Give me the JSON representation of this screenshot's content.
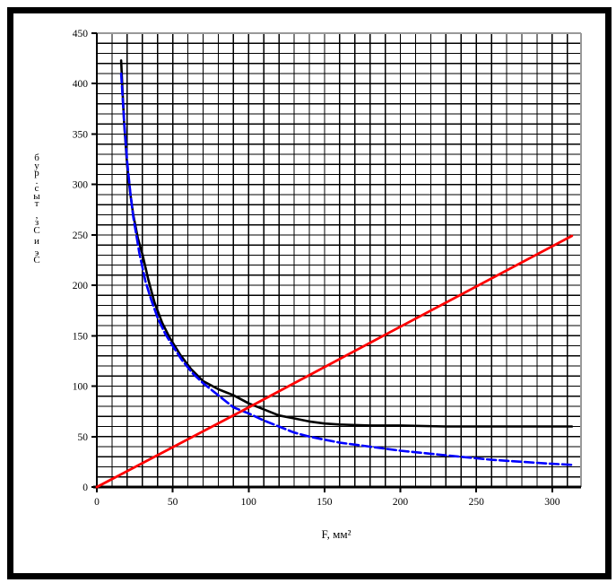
{
  "page": {
    "background": "#ffffff",
    "frame_color": "#000000"
  },
  "chart_data": {
    "type": "line",
    "title": "",
    "xlabel": "F, мм²",
    "ylabel": "Сэ и Сз, тыс.руб",
    "ylabel_stacked_bottom_to_top": true,
    "xlim": [
      0,
      319
    ],
    "ylim": [
      0,
      450
    ],
    "x_ticks": [
      0,
      50,
      100,
      150,
      200,
      250,
      300
    ],
    "y_ticks": [
      0,
      50,
      100,
      150,
      200,
      250,
      300,
      350,
      400,
      450
    ],
    "grid": {
      "x_minor_step": 10,
      "y_minor_step": 10,
      "color": "#000000",
      "plot_border_color": "#999999"
    },
    "legend": null,
    "series": [
      {
        "name": "black-total-cost-curve",
        "color": "#000000",
        "style": "solid",
        "width": 2.6,
        "points": [
          [
            16,
            423
          ],
          [
            17,
            390
          ],
          [
            18,
            360
          ],
          [
            20,
            318
          ],
          [
            22,
            292
          ],
          [
            24,
            270
          ],
          [
            27,
            247
          ],
          [
            30,
            231
          ],
          [
            34,
            205
          ],
          [
            38,
            183
          ],
          [
            43,
            163
          ],
          [
            48,
            148
          ],
          [
            55,
            131
          ],
          [
            62,
            117
          ],
          [
            70,
            105
          ],
          [
            80,
            97
          ],
          [
            90,
            91
          ],
          [
            100,
            83
          ],
          [
            110,
            77
          ],
          [
            120,
            71
          ],
          [
            130,
            68
          ],
          [
            140,
            65
          ],
          [
            150,
            63
          ],
          [
            160,
            62
          ],
          [
            180,
            61
          ],
          [
            200,
            61
          ],
          [
            230,
            60
          ],
          [
            260,
            60
          ],
          [
            290,
            60
          ],
          [
            313,
            60
          ]
        ]
      },
      {
        "name": "blue-loss-cost-curve",
        "color": "#0000ff",
        "style": "dashed",
        "width": 2.6,
        "points": [
          [
            16,
            410
          ],
          [
            18,
            362
          ],
          [
            20,
            322
          ],
          [
            22,
            293
          ],
          [
            24,
            268
          ],
          [
            28,
            232
          ],
          [
            32,
            204
          ],
          [
            36,
            185
          ],
          [
            40,
            168
          ],
          [
            45,
            152
          ],
          [
            50,
            140
          ],
          [
            56,
            126
          ],
          [
            63,
            113
          ],
          [
            70,
            103
          ],
          [
            80,
            91
          ],
          [
            90,
            79
          ],
          [
            100,
            73
          ],
          [
            110,
            66
          ],
          [
            120,
            60
          ],
          [
            130,
            54
          ],
          [
            140,
            50
          ],
          [
            150,
            47
          ],
          [
            160,
            44
          ],
          [
            180,
            40
          ],
          [
            200,
            36
          ],
          [
            220,
            33
          ],
          [
            240,
            30
          ],
          [
            260,
            27
          ],
          [
            280,
            25
          ],
          [
            300,
            23
          ],
          [
            313,
            22
          ]
        ]
      },
      {
        "name": "red-capital-cost-line",
        "color": "#ff0000",
        "style": "solid",
        "width": 2.8,
        "points": [
          [
            0,
            0
          ],
          [
            100,
            79
          ],
          [
            200,
            159
          ],
          [
            313,
            249
          ]
        ]
      }
    ]
  }
}
